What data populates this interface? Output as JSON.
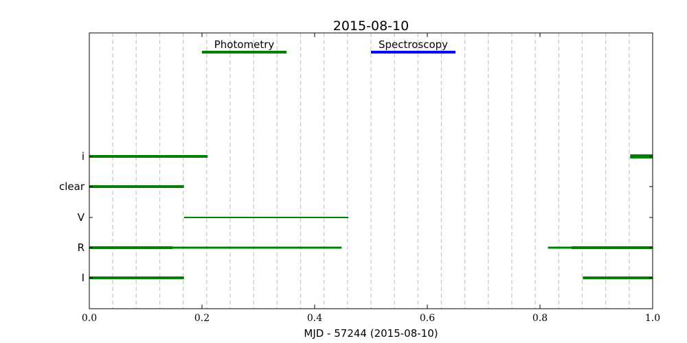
{
  "chart_data": {
    "type": "timeline",
    "title": "2015-08-10",
    "xlabel": "MJD - 57244 (2015-08-10)",
    "xlim": [
      0.0,
      1.0
    ],
    "x_ticks": [
      "0.0",
      "0.2",
      "0.4",
      "0.6",
      "0.8",
      "1.0"
    ],
    "x_tick_values": [
      0.0,
      0.2,
      0.4,
      0.6,
      0.8,
      1.0
    ],
    "grid": "vertical dashed lines, hourly",
    "grid_x": [
      0.0417,
      0.0833,
      0.125,
      0.1667,
      0.2083,
      0.25,
      0.2917,
      0.3333,
      0.375,
      0.4167,
      0.4583,
      0.5,
      0.5417,
      0.5833,
      0.625,
      0.6667,
      0.7083,
      0.75,
      0.7917,
      0.8333,
      0.875,
      0.9167,
      0.9583
    ],
    "legend": [
      {
        "label": "Photometry",
        "color": "#008000",
        "x": [
          0.2,
          0.35
        ]
      },
      {
        "label": "Spectroscopy",
        "color": "#0000ff",
        "x": [
          0.5,
          0.65
        ]
      }
    ],
    "rows": [
      "I",
      "R",
      "V",
      "clear",
      "i"
    ],
    "segments": [
      {
        "row": "I",
        "start": 0.0,
        "end": 0.168,
        "weight": "thick"
      },
      {
        "row": "I",
        "start": 0.876,
        "end": 1.0,
        "weight": "thick"
      },
      {
        "row": "R",
        "start": 0.0,
        "end": 0.148,
        "weight": "thick"
      },
      {
        "row": "R",
        "start": 0.0,
        "end": 0.137,
        "weight": "medium"
      },
      {
        "row": "R",
        "start": 0.148,
        "end": 0.448,
        "weight": "medium"
      },
      {
        "row": "R",
        "start": 0.814,
        "end": 0.856,
        "weight": "medium"
      },
      {
        "row": "R",
        "start": 0.856,
        "end": 1.0,
        "weight": "thick"
      },
      {
        "row": "V",
        "start": 0.168,
        "end": 0.46,
        "weight": "thin"
      },
      {
        "row": "clear",
        "start": 0.0,
        "end": 0.168,
        "weight": "thick"
      },
      {
        "row": "i",
        "start": 0.0,
        "end": 0.21,
        "weight": "thick"
      },
      {
        "row": "i",
        "start": 0.96,
        "end": 1.0,
        "weight": "heavy"
      }
    ],
    "series_color": "#008000"
  }
}
